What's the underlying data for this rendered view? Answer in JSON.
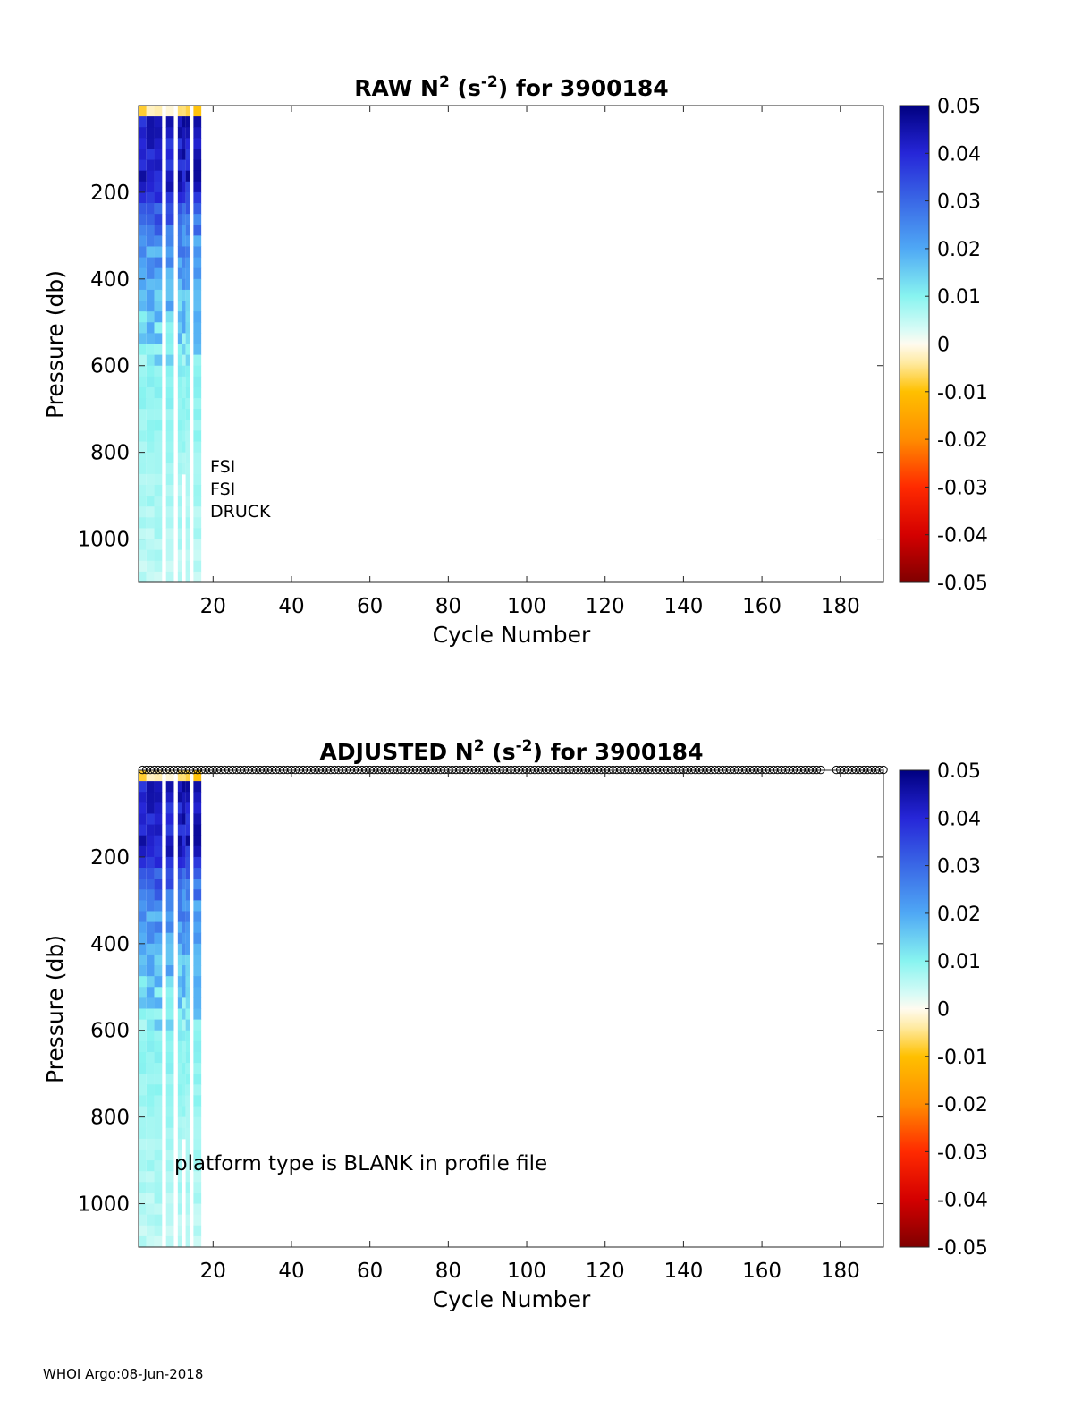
{
  "footer": "WHOI Argo:08-Jun-2018",
  "colormap": {
    "min": -0.05,
    "max": 0.05,
    "ticks": [
      "0.05",
      "0.04",
      "0.03",
      "0.02",
      "0.01",
      "0",
      "-0.01",
      "-0.02",
      "-0.03",
      "-0.04",
      "-0.05"
    ],
    "stops": [
      {
        "v": -0.05,
        "c": "#800000"
      },
      {
        "v": -0.04,
        "c": "#d40000"
      },
      {
        "v": -0.03,
        "c": "#ff2a00"
      },
      {
        "v": -0.02,
        "c": "#ff8c00"
      },
      {
        "v": -0.01,
        "c": "#ffc000"
      },
      {
        "v": -0.004,
        "c": "#ffeaa0"
      },
      {
        "v": 0.0,
        "c": "#fffbf0"
      },
      {
        "v": 0.003,
        "c": "#d8fbf6"
      },
      {
        "v": 0.01,
        "c": "#88f4f0"
      },
      {
        "v": 0.02,
        "c": "#4fa8f5"
      },
      {
        "v": 0.03,
        "c": "#3a68e6"
      },
      {
        "v": 0.04,
        "c": "#2626d8"
      },
      {
        "v": 0.05,
        "c": "#000080"
      }
    ]
  },
  "chart_data": [
    {
      "type": "heatmap",
      "title_main": "RAW N",
      "title_sup1": "2",
      "title_mid": " (s",
      "title_sup2": "-2",
      "title_end": ") for 3900184",
      "xlabel": "Cycle Number",
      "ylabel": "Pressure (db)",
      "xlim": [
        1,
        191
      ],
      "ylim": [
        1100,
        0
      ],
      "xticks": [
        20,
        40,
        60,
        80,
        100,
        120,
        140,
        160,
        180
      ],
      "yticks": [
        200,
        400,
        600,
        800,
        1000
      ],
      "annotations": [
        "FSI",
        "FSI",
        "DRUCK"
      ],
      "columns": [
        {
          "x0": 1,
          "x1": 3,
          "bottom": 1100
        },
        {
          "x0": 3,
          "x1": 5,
          "bottom": 1100
        },
        {
          "x0": 5,
          "x1": 7,
          "bottom": 1100
        },
        {
          "x0": 8,
          "x1": 10,
          "bottom": 1100
        },
        {
          "x0": 11,
          "x1": 12,
          "bottom": 1100
        },
        {
          "x0": 12,
          "x1": 13,
          "bottom": 850
        },
        {
          "x0": 13,
          "x1": 14,
          "bottom": 1100
        },
        {
          "x0": 15,
          "x1": 17,
          "bottom": 1100
        }
      ],
      "gaps": [
        [
          7,
          8
        ],
        [
          10,
          11
        ],
        [
          14,
          15
        ]
      ]
    },
    {
      "type": "heatmap",
      "title_main": "ADJUSTED N",
      "title_sup1": "2",
      "title_mid": " (s",
      "title_sup2": "-2",
      "title_end": ") for 3900184",
      "xlabel": "Cycle Number",
      "ylabel": "Pressure (db)",
      "xlim": [
        1,
        191
      ],
      "ylim": [
        1100,
        0
      ],
      "xticks": [
        20,
        40,
        60,
        80,
        100,
        120,
        140,
        160,
        180
      ],
      "yticks": [
        200,
        400,
        600,
        800,
        1000
      ],
      "annotations": [
        "platform type is BLANK in profile file"
      ],
      "marker_row": {
        "pressure": -5,
        "x_start": 2,
        "x_end": 175,
        "x_start2": 179,
        "x_end2": 191
      },
      "columns": [
        {
          "x0": 1,
          "x1": 3,
          "bottom": 1100
        },
        {
          "x0": 3,
          "x1": 5,
          "bottom": 1100
        },
        {
          "x0": 5,
          "x1": 7,
          "bottom": 1100
        },
        {
          "x0": 8,
          "x1": 10,
          "bottom": 1100
        },
        {
          "x0": 11,
          "x1": 12,
          "bottom": 1100
        },
        {
          "x0": 12,
          "x1": 13,
          "bottom": 850
        },
        {
          "x0": 13,
          "x1": 14,
          "bottom": 1100
        },
        {
          "x0": 15,
          "x1": 17,
          "bottom": 1100
        }
      ],
      "gaps": [
        [
          7,
          8
        ],
        [
          10,
          11
        ],
        [
          14,
          15
        ]
      ]
    }
  ]
}
